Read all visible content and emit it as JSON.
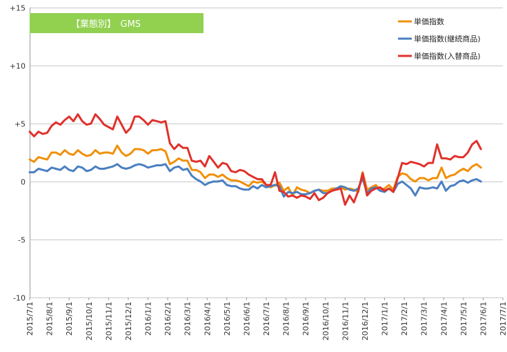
{
  "chart_data": {
    "type": "line",
    "title": "【業態別】　GMS",
    "title_box_color": "#92d050",
    "ylim": [
      -10,
      15
    ],
    "y_ticks": [
      15,
      10,
      5,
      0,
      -5,
      -10
    ],
    "y_tick_labels": [
      "+15",
      "+10",
      "+5",
      "0",
      "-5",
      "-10"
    ],
    "x_tick_labels": [
      "2015/7/1",
      "2015/8/1",
      "2015/9/1",
      "2015/10/1",
      "2015/11/1",
      "2015/12/1",
      "2016/1/1",
      "2016/2/1",
      "2016/3/1",
      "2016/4/1",
      "2016/5/1",
      "2016/6/1",
      "2016/7/1",
      "2016/8/1",
      "2016/9/1",
      "2016/10/1",
      "2016/11/1",
      "2016/12/1",
      "2017/1/1",
      "2017/2/1",
      "2017/3/1",
      "2017/4/1",
      "2017/5/1",
      "2017/6/1",
      "2017/7/1"
    ],
    "x_range_weeks": [
      0,
      108
    ],
    "grid": "horizontal",
    "legend_position": "top-right",
    "series": [
      {
        "name": "単価指数",
        "color": "#f0900a",
        "values": [
          1.9,
          1.7,
          2.1,
          2.0,
          1.9,
          2.5,
          2.5,
          2.3,
          2.7,
          2.4,
          2.3,
          2.7,
          2.4,
          2.2,
          2.3,
          2.7,
          2.4,
          2.5,
          2.5,
          2.4,
          3.1,
          2.5,
          2.2,
          2.4,
          2.8,
          2.8,
          2.7,
          2.4,
          2.7,
          2.7,
          2.8,
          2.6,
          1.5,
          1.7,
          2.0,
          1.8,
          1.8,
          1.0,
          1.0,
          0.8,
          0.3,
          0.6,
          0.6,
          0.4,
          0.6,
          0.3,
          0.1,
          0.1,
          0.0,
          -0.2,
          -0.4,
          0.0,
          -0.1,
          0.0,
          -0.3,
          -0.5,
          -0.3,
          -0.1,
          -0.8,
          -0.5,
          -1.2,
          -0.5,
          -0.7,
          -0.8,
          -1.0,
          -0.8,
          -0.7,
          -0.8,
          -0.8,
          -0.6,
          -0.6,
          -0.5,
          -0.7,
          -0.6,
          -0.7,
          -0.9,
          0.8,
          -0.7,
          -0.5,
          -0.3,
          -0.7,
          -0.6,
          -0.3,
          -0.7,
          0.4,
          0.7,
          0.6,
          0.2,
          0.0,
          0.3,
          0.3,
          0.1,
          0.3,
          0.3,
          1.2,
          0.3,
          0.5,
          0.6,
          0.9,
          1.1,
          0.9,
          1.3,
          1.5,
          1.2
        ]
      },
      {
        "name": "単価指数(継続商品)",
        "color": "#4a7fc1",
        "values": [
          0.8,
          0.8,
          1.1,
          1.0,
          0.9,
          1.2,
          1.1,
          1.0,
          1.3,
          1.0,
          0.9,
          1.3,
          1.2,
          0.9,
          1.0,
          1.3,
          1.1,
          1.1,
          1.2,
          1.3,
          1.5,
          1.2,
          1.1,
          1.2,
          1.4,
          1.5,
          1.4,
          1.2,
          1.3,
          1.4,
          1.4,
          1.5,
          0.9,
          1.2,
          1.3,
          1.0,
          1.1,
          0.5,
          0.2,
          0.0,
          -0.3,
          -0.1,
          0.0,
          0.0,
          0.1,
          -0.3,
          -0.4,
          -0.4,
          -0.6,
          -0.7,
          -0.7,
          -0.4,
          -0.6,
          -0.3,
          -0.5,
          -0.4,
          -0.3,
          -0.4,
          -1.3,
          -0.9,
          -1.0,
          -0.9,
          -1.1,
          -1.1,
          -1.0,
          -0.8,
          -0.7,
          -1.0,
          -1.0,
          -0.8,
          -0.6,
          -0.4,
          -0.5,
          -0.7,
          -0.8,
          -0.6,
          0.3,
          -1.0,
          -0.6,
          -0.5,
          -0.8,
          -0.9,
          -0.6,
          -0.9,
          -0.2,
          0.0,
          -0.3,
          -0.6,
          -1.2,
          -0.5,
          -0.6,
          -0.6,
          -0.5,
          -0.6,
          0.0,
          -0.8,
          -0.4,
          -0.3,
          0.0,
          0.1,
          -0.1,
          0.1,
          0.2,
          0.0
        ]
      },
      {
        "name": "単価指数(入替商品)",
        "color": "#e0312b",
        "values": [
          4.3,
          3.9,
          4.3,
          4.1,
          4.2,
          4.8,
          5.1,
          4.9,
          5.3,
          5.6,
          5.2,
          5.8,
          5.2,
          4.9,
          5.0,
          5.8,
          5.4,
          4.9,
          4.7,
          4.5,
          5.6,
          4.9,
          4.2,
          4.6,
          5.6,
          5.6,
          5.3,
          4.9,
          5.3,
          5.2,
          5.1,
          5.2,
          3.3,
          2.8,
          3.2,
          2.9,
          2.9,
          1.8,
          1.7,
          1.8,
          1.3,
          2.2,
          1.7,
          1.2,
          1.6,
          1.5,
          0.9,
          0.8,
          1.0,
          0.9,
          0.6,
          0.4,
          0.2,
          0.2,
          -0.3,
          -0.3,
          0.8,
          -0.8,
          -0.9,
          -1.3,
          -1.2,
          -1.4,
          -1.2,
          -1.3,
          -1.5,
          -1.0,
          -1.6,
          -1.4,
          -1.0,
          -0.8,
          -0.7,
          -0.6,
          -2.0,
          -1.2,
          -1.8,
          -0.8,
          0.7,
          -1.2,
          -0.8,
          -0.6,
          -0.5,
          -0.8,
          -0.6,
          -0.9,
          0.3,
          1.6,
          1.5,
          1.7,
          1.6,
          1.5,
          1.3,
          1.6,
          1.6,
          3.2,
          2.0,
          2.0,
          1.9,
          2.2,
          2.1,
          2.1,
          2.5,
          3.2,
          3.5,
          2.8
        ]
      }
    ]
  }
}
